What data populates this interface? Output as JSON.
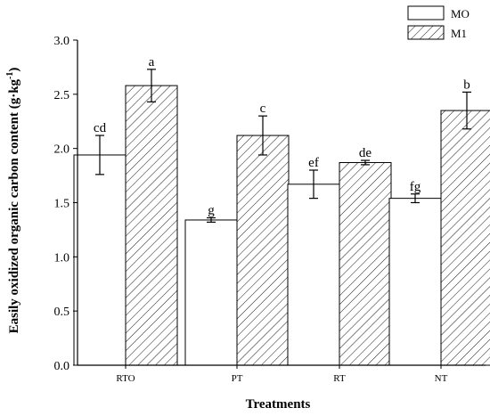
{
  "chart_data": {
    "type": "bar",
    "xlabel": "Treatments",
    "ylabel": "Easily oxidized organic carbon content (g·kg",
    "ylabel_sup": "-1",
    "ylabel_close": ")",
    "ylim": [
      0,
      3.0
    ],
    "yticks": [
      "0.0",
      "0.5",
      "1.0",
      "1.5",
      "2.0",
      "2.5",
      "3.0"
    ],
    "grid": false,
    "legend_position": "top-right",
    "categories": [
      "RTO",
      "PT",
      "RT",
      "NT"
    ],
    "series": [
      {
        "name": "MO",
        "pattern": "solid",
        "values": [
          1.94,
          1.34,
          1.67,
          1.54
        ],
        "errors": [
          0.18,
          0.02,
          0.13,
          0.04
        ],
        "labels": [
          "cd",
          "g",
          "ef",
          "fg"
        ]
      },
      {
        "name": "M1",
        "pattern": "hatched",
        "values": [
          2.58,
          2.12,
          1.87,
          2.35
        ],
        "errors": [
          0.15,
          0.18,
          0.02,
          0.17
        ],
        "labels": [
          "a",
          "c",
          "de",
          "b"
        ]
      }
    ],
    "colors": {
      "bar_fill": "#ffffff",
      "stroke": "#000000"
    }
  }
}
